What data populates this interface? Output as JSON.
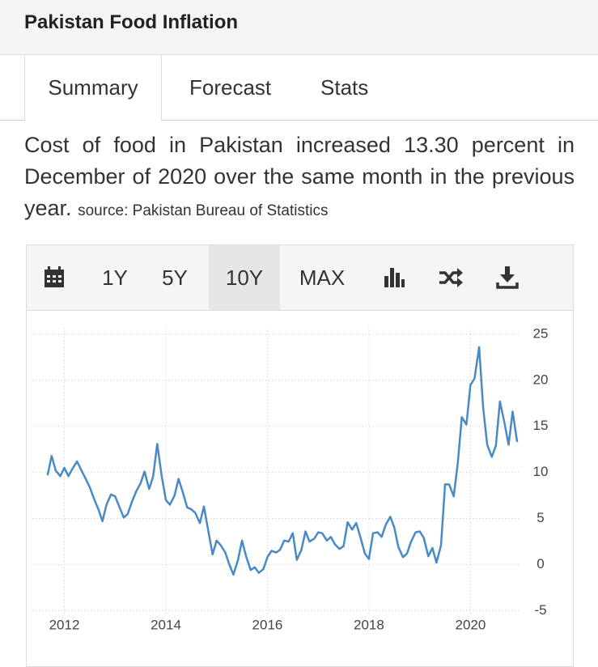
{
  "header": {
    "title": "Pakistan Food Inflation"
  },
  "tabs": [
    "Summary",
    "Forecast",
    "Stats"
  ],
  "description": {
    "text": "Cost of food in Pakistan increased 13.30 percent in December of 2020 over the same month in the previous year.",
    "source": "source: Pakistan Bureau of Statistics"
  },
  "toolbar": {
    "ranges": [
      "1Y",
      "5Y",
      "10Y",
      "MAX"
    ]
  },
  "chart_data": {
    "type": "line",
    "color": "#4a8ac4",
    "grid": true,
    "x": [
      2011.67,
      2011.75,
      2011.83,
      2011.92,
      2012.0,
      2012.08,
      2012.17,
      2012.25,
      2012.33,
      2012.42,
      2012.5,
      2012.58,
      2012.67,
      2012.75,
      2012.83,
      2012.92,
      2013.0,
      2013.08,
      2013.17,
      2013.25,
      2013.33,
      2013.42,
      2013.5,
      2013.58,
      2013.67,
      2013.75,
      2013.83,
      2013.92,
      2014.0,
      2014.08,
      2014.17,
      2014.25,
      2014.33,
      2014.42,
      2014.5,
      2014.58,
      2014.67,
      2014.75,
      2014.83,
      2014.92,
      2015.0,
      2015.08,
      2015.17,
      2015.25,
      2015.33,
      2015.42,
      2015.5,
      2015.58,
      2015.67,
      2015.75,
      2015.83,
      2015.92,
      2016.0,
      2016.08,
      2016.17,
      2016.25,
      2016.33,
      2016.42,
      2016.5,
      2016.58,
      2016.67,
      2016.75,
      2016.83,
      2016.92,
      2017.0,
      2017.08,
      2017.17,
      2017.25,
      2017.33,
      2017.42,
      2017.5,
      2017.58,
      2017.67,
      2017.75,
      2017.83,
      2017.92,
      2018.0,
      2018.08,
      2018.17,
      2018.25,
      2018.33,
      2018.42,
      2018.5,
      2018.58,
      2018.67,
      2018.75,
      2018.83,
      2018.92,
      2019.0,
      2019.08,
      2019.17,
      2019.25,
      2019.33,
      2019.42,
      2019.5,
      2019.58,
      2019.67,
      2019.75,
      2019.83,
      2019.92,
      2020.0,
      2020.08,
      2020.17,
      2020.25,
      2020.33,
      2020.42,
      2020.5,
      2020.58,
      2020.67,
      2020.75,
      2020.83,
      2020.92
    ],
    "values": [
      9.7,
      11.8,
      10.2,
      9.6,
      10.5,
      9.6,
      10.5,
      11.2,
      10.3,
      9.3,
      8.4,
      7.2,
      6.0,
      4.7,
      6.5,
      7.6,
      7.4,
      6.3,
      5.1,
      5.5,
      6.8,
      8.0,
      8.8,
      10.1,
      8.2,
      9.6,
      13.1,
      9.5,
      7.0,
      6.5,
      7.5,
      9.3,
      7.9,
      6.2,
      6.0,
      5.6,
      4.5,
      6.3,
      3.8,
      1.1,
      2.6,
      2.1,
      1.3,
      0.0,
      -1.1,
      0.5,
      2.6,
      0.9,
      -0.6,
      -0.3,
      -0.9,
      -0.5,
      0.8,
      1.5,
      1.3,
      1.6,
      2.6,
      2.5,
      3.4,
      0.5,
      1.6,
      3.6,
      2.5,
      2.8,
      3.5,
      3.4,
      2.6,
      3.0,
      2.2,
      1.7,
      2.0,
      4.6,
      3.8,
      4.5,
      3.0,
      1.2,
      0.6,
      3.4,
      3.5,
      3.0,
      4.3,
      5.2,
      4.0,
      1.9,
      0.8,
      1.2,
      2.5,
      3.5,
      3.6,
      2.9,
      0.9,
      1.8,
      0.2,
      2.1,
      8.7,
      8.7,
      7.4,
      11.0,
      16.0,
      15.2,
      19.5,
      20.2,
      23.6,
      17.0,
      13.0,
      11.7,
      12.9,
      17.7,
      15.4,
      13.0,
      16.6,
      13.3
    ],
    "xlim": [
      2011.37,
      2020.95
    ],
    "xticks": [
      2012,
      2014,
      2016,
      2018,
      2020
    ],
    "ylim": [
      -5.5,
      25.7
    ],
    "yticks": [
      -5,
      0,
      5,
      10,
      15,
      20,
      25
    ]
  }
}
